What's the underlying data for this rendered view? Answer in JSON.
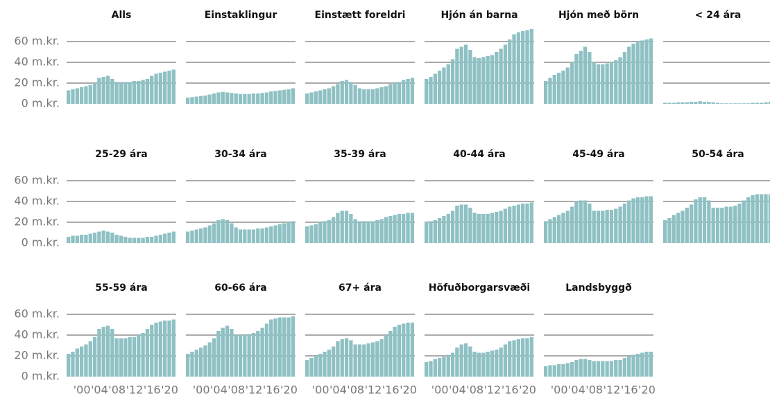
{
  "chart_data": {
    "type": "bar",
    "color": "#8fc1c4",
    "grid": true,
    "ylim": [
      0,
      75
    ],
    "yticks": [
      {
        "value": 0,
        "label": "0 m.kr."
      },
      {
        "value": 20,
        "label": "20 m.kr."
      },
      {
        "value": 40,
        "label": "40 m.kr."
      },
      {
        "value": 60,
        "label": "60 m.kr."
      }
    ],
    "categories": [
      null,
      null,
      null,
      "'00",
      null,
      null,
      null,
      "'04",
      null,
      null,
      null,
      "'08",
      null,
      null,
      null,
      "'12",
      null,
      null,
      null,
      "'16",
      null,
      null,
      null,
      "'20",
      null
    ],
    "panels": [
      {
        "title": "Alls",
        "values": [
          13,
          14,
          15,
          16,
          17,
          18,
          20,
          25,
          26,
          27,
          24,
          21,
          21,
          21,
          21,
          22,
          22,
          23,
          24,
          27,
          29,
          30,
          31,
          32,
          33
        ]
      },
      {
        "title": "Einstaklingur",
        "values": [
          6,
          6.5,
          7,
          7.5,
          8,
          9,
          10,
          11,
          11.5,
          11,
          10.5,
          10,
          9.5,
          9.5,
          9.5,
          10,
          10,
          10.5,
          11,
          12,
          12.5,
          13,
          13.5,
          14,
          15
        ]
      },
      {
        "title": "Einstætt foreldri",
        "values": [
          10,
          11,
          12,
          13,
          14,
          15,
          17,
          19,
          22,
          23,
          21,
          18,
          15,
          14,
          14,
          14,
          15,
          16,
          17,
          19,
          20,
          21,
          23,
          24,
          25
        ]
      },
      {
        "title": "Hjón án barna",
        "values": [
          24,
          26,
          29,
          32,
          35,
          38,
          43,
          53,
          55,
          57,
          52,
          45,
          44,
          45,
          46,
          47,
          50,
          53,
          57,
          62,
          67,
          69,
          70,
          71,
          72
        ]
      },
      {
        "title": "Hjón með börn",
        "values": [
          22,
          25,
          28,
          30,
          32,
          35,
          40,
          48,
          51,
          55,
          50,
          40,
          38,
          38,
          39,
          40,
          42,
          45,
          50,
          55,
          58,
          60,
          61,
          62,
          63
        ]
      },
      {
        "title": "< 24 ára",
        "values": [
          1,
          1,
          1,
          1.5,
          1.5,
          1.5,
          2,
          2,
          2.5,
          2,
          2,
          1.5,
          1,
          0.5,
          0.5,
          0.5,
          0.5,
          0.5,
          0.5,
          0.5,
          1,
          1,
          1,
          1.5,
          2
        ]
      },
      {
        "title": "25-29 ára",
        "values": [
          6,
          7,
          7,
          8,
          8,
          9,
          10,
          11,
          12,
          11,
          10,
          8,
          7,
          6,
          5,
          5,
          5,
          5,
          6,
          6,
          7,
          8,
          9,
          10,
          11
        ]
      },
      {
        "title": "30-34 ára",
        "values": [
          11,
          12,
          13,
          14,
          15,
          17,
          19,
          22,
          23,
          22,
          19,
          15,
          13,
          13,
          13,
          13,
          14,
          14,
          15,
          16,
          17,
          18,
          19,
          20,
          21
        ]
      },
      {
        "title": "35-39 ára",
        "values": [
          16,
          17,
          18,
          20,
          21,
          22,
          25,
          29,
          31,
          31,
          28,
          23,
          21,
          21,
          21,
          21,
          22,
          23,
          25,
          26,
          27,
          28,
          28,
          29,
          29
        ]
      },
      {
        "title": "40-44 ára",
        "values": [
          20,
          21,
          22,
          24,
          26,
          28,
          31,
          36,
          37,
          37,
          34,
          29,
          28,
          28,
          28,
          29,
          30,
          31,
          33,
          35,
          36,
          37,
          38,
          38,
          39
        ]
      },
      {
        "title": "45-49 ára",
        "values": [
          21,
          23,
          25,
          27,
          29,
          31,
          35,
          40,
          41,
          41,
          38,
          31,
          31,
          31,
          32,
          32,
          33,
          35,
          38,
          41,
          43,
          44,
          44,
          45,
          45
        ]
      },
      {
        "title": "50-54 ára",
        "values": [
          22,
          24,
          27,
          29,
          31,
          34,
          37,
          42,
          44,
          44,
          41,
          34,
          34,
          34,
          35,
          35,
          36,
          38,
          41,
          44,
          46,
          47,
          47,
          47,
          47
        ]
      },
      {
        "title": "55-59 ára",
        "values": [
          22,
          24,
          27,
          29,
          31,
          34,
          38,
          46,
          48,
          49,
          46,
          37,
          37,
          37,
          38,
          38,
          40,
          42,
          46,
          50,
          52,
          53,
          54,
          54,
          55
        ]
      },
      {
        "title": "60-66 ára",
        "values": [
          22,
          24,
          26,
          28,
          30,
          33,
          37,
          44,
          47,
          49,
          46,
          40,
          40,
          40,
          41,
          42,
          44,
          47,
          51,
          55,
          56,
          57,
          57,
          57,
          58
        ]
      },
      {
        "title": "67+ ára",
        "values": [
          16,
          18,
          20,
          22,
          24,
          26,
          29,
          34,
          36,
          37,
          35,
          31,
          31,
          31,
          32,
          33,
          34,
          36,
          40,
          44,
          48,
          50,
          51,
          52,
          52
        ]
      },
      {
        "title": "Höfuðborgarsvæði",
        "values": [
          14,
          15,
          17,
          18,
          19,
          21,
          23,
          28,
          31,
          32,
          29,
          24,
          23,
          23,
          24,
          25,
          26,
          28,
          31,
          34,
          35,
          36,
          37,
          37,
          38
        ]
      },
      {
        "title": "Landsbyggð",
        "values": [
          10,
          11,
          11,
          12,
          12,
          13,
          14,
          16,
          17,
          17,
          16,
          15,
          15,
          15,
          15,
          15,
          16,
          16,
          18,
          20,
          21,
          22,
          23,
          24,
          24
        ]
      }
    ]
  }
}
